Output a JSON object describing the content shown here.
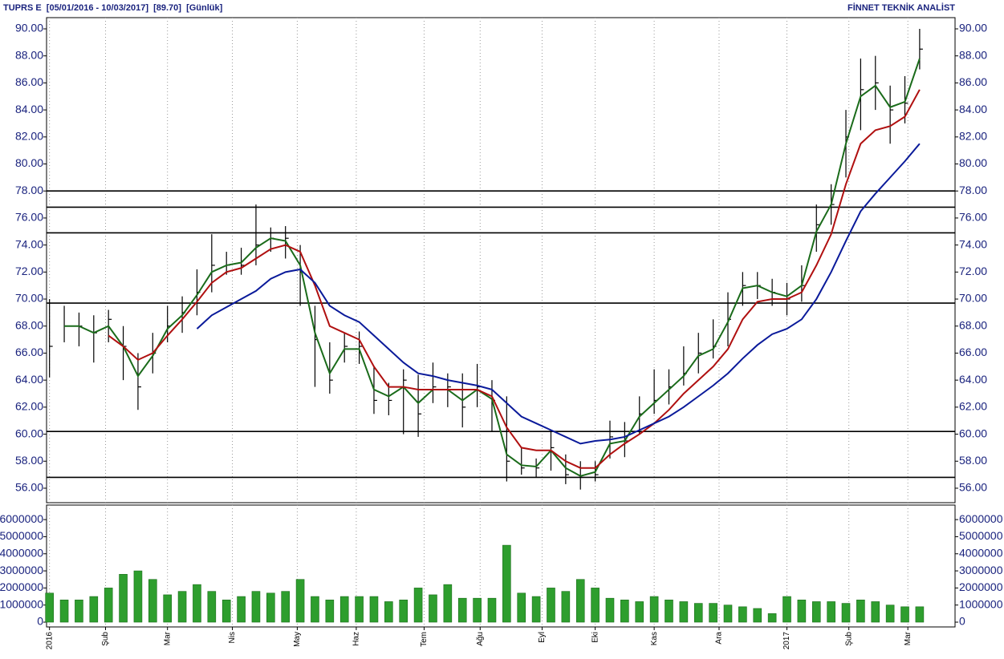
{
  "chart_data": [
    {
      "type": "ohlc",
      "title": "TUPRS E  [05/01/2016 - 10/03/2017]  [89.70]  [Günlük]",
      "subtitle": "FİNNET TEKNİK ANALİST",
      "x": [
        0,
        5,
        10,
        15,
        20,
        25,
        30,
        35,
        40,
        45,
        50,
        55,
        60,
        65,
        70,
        75,
        80,
        85,
        90,
        95,
        100,
        105,
        110,
        115,
        120,
        125,
        130,
        135,
        140,
        145,
        150,
        155,
        160,
        165,
        170,
        175,
        180,
        185,
        190,
        195,
        200,
        205,
        210,
        215,
        220,
        225,
        230,
        235,
        240,
        245,
        250,
        255,
        260,
        265,
        270,
        275,
        280,
        285,
        290,
        295
      ],
      "high": [
        70,
        69.5,
        69,
        68.8,
        69.2,
        68,
        66,
        67.5,
        69.5,
        70.2,
        72.2,
        74.8,
        73.5,
        73.8,
        77,
        75.3,
        75.4,
        74,
        69.5,
        66.8,
        67.5,
        67.6,
        65,
        63.8,
        64.8,
        64.4,
        65.3,
        64.5,
        64.5,
        65.2,
        64,
        62.8,
        59,
        58.2,
        60.3,
        58.5,
        58,
        58,
        61,
        60.9,
        62.8,
        64.8,
        64.8,
        66.5,
        67.5,
        68.5,
        70.5,
        72,
        72,
        71.5,
        71.2,
        72.5,
        77,
        78.5,
        84,
        87.8,
        88,
        85.8,
        86.5,
        90
      ],
      "low": [
        64.2,
        66.8,
        66.5,
        65.3,
        66.8,
        64,
        61.8,
        64.5,
        66.8,
        67.5,
        68.8,
        70.5,
        71.8,
        71.8,
        72.5,
        73.5,
        73,
        69.5,
        63.5,
        63,
        65.3,
        65.2,
        61.5,
        61.4,
        60,
        59.8,
        62.3,
        62,
        60.5,
        62,
        60.2,
        56.5,
        57,
        56.8,
        57.3,
        56.3,
        55.9,
        56.5,
        58.2,
        58.3,
        60,
        61.5,
        62.2,
        63.6,
        64.5,
        65.6,
        66.5,
        69.5,
        70,
        69.5,
        68.8,
        69.8,
        73.5,
        75.5,
        79,
        82.5,
        84,
        81.5,
        83,
        87
      ],
      "close": [
        66.5,
        68,
        68,
        67.5,
        68.5,
        66.5,
        63.5,
        66,
        68,
        69,
        70.5,
        72.5,
        72.5,
        72.5,
        74,
        74.5,
        74.5,
        72,
        67,
        64,
        66.5,
        66.5,
        62.5,
        62.5,
        64,
        61.5,
        63.5,
        63.5,
        62,
        63.5,
        62.5,
        58,
        57.5,
        57.5,
        59,
        57,
        56.8,
        57,
        59.8,
        59.5,
        61.5,
        62.5,
        63.5,
        64.5,
        66,
        66.5,
        68.5,
        71,
        71,
        70.5,
        70,
        71,
        75.5,
        77,
        82,
        85.5,
        86,
        84,
        84.5,
        88.5
      ],
      "bar_color": "#000000",
      "series": [
        {
          "color": "#1a6b1a",
          "values": [
            null,
            68,
            68,
            67.5,
            68,
            66.5,
            64.3,
            65.8,
            67.8,
            68.8,
            70.3,
            72,
            72.5,
            72.7,
            73.8,
            74.5,
            74.3,
            72.5,
            67.5,
            64.5,
            66.3,
            66.3,
            63.3,
            62.8,
            63.5,
            62.3,
            63.3,
            63.3,
            62.5,
            63.3,
            62.6,
            58.5,
            57.7,
            57.6,
            58.8,
            57.5,
            56.9,
            57.2,
            59.3,
            59.5,
            61.3,
            62.3,
            63.3,
            64.3,
            65.8,
            66.3,
            68.3,
            70.8,
            71,
            70.5,
            70.2,
            71,
            75,
            77,
            81.5,
            85,
            85.8,
            84.2,
            84.6,
            87.8
          ]
        },
        {
          "color": "#b01010",
          "values": [
            null,
            null,
            null,
            null,
            67.3,
            66.5,
            65.5,
            66,
            67.3,
            68.5,
            69.8,
            71.2,
            72,
            72.3,
            73,
            73.7,
            74,
            73.5,
            71,
            68,
            67.5,
            67,
            65,
            63.5,
            63.5,
            63.3,
            63.3,
            63.3,
            63.3,
            63.3,
            62.8,
            60.5,
            59,
            58.8,
            58.8,
            58,
            57.5,
            57.5,
            58.5,
            59.3,
            60,
            60.8,
            61.8,
            63,
            64,
            65,
            66.3,
            68.5,
            69.8,
            70,
            70,
            70.5,
            72.5,
            74.8,
            78.5,
            81.5,
            82.5,
            82.8,
            83.5,
            85.5
          ]
        },
        {
          "color": "#0a1a9a",
          "values": [
            null,
            null,
            null,
            null,
            null,
            null,
            null,
            null,
            null,
            null,
            67.8,
            68.8,
            69.4,
            70,
            70.6,
            71.5,
            72,
            72.2,
            71.2,
            69.5,
            68.8,
            68.3,
            67.3,
            66.3,
            65.3,
            64.5,
            64.3,
            64,
            63.8,
            63.6,
            63.3,
            62.3,
            61.3,
            60.8,
            60.3,
            59.8,
            59.3,
            59.5,
            59.6,
            59.8,
            60.3,
            60.8,
            61.3,
            62,
            62.8,
            63.6,
            64.5,
            65.6,
            66.6,
            67.4,
            67.8,
            68.5,
            70,
            72,
            74.3,
            76.5,
            77.8,
            79,
            80.2,
            81.5
          ]
        }
      ],
      "hlines": [
        78,
        76.8,
        74.9,
        69.7,
        60.2,
        56.8
      ],
      "xlim": [
        -1,
        307
      ],
      "ylim": [
        54.93,
        90.83
      ],
      "yticks": [
        {
          "value": 56,
          "label": "56.00"
        },
        {
          "value": 58,
          "label": "58.00"
        },
        {
          "value": 60,
          "label": "60.00"
        },
        {
          "value": 62,
          "label": "62.00"
        },
        {
          "value": 64,
          "label": "64.00"
        },
        {
          "value": 66,
          "label": "66.00"
        },
        {
          "value": 68,
          "label": "68.00"
        },
        {
          "value": 70,
          "label": "70.00"
        },
        {
          "value": 72,
          "label": "72.00"
        },
        {
          "value": 74,
          "label": "74.00"
        },
        {
          "value": 76,
          "label": "76.00"
        },
        {
          "value": 78,
          "label": "78.00"
        },
        {
          "value": 80,
          "label": "80.00"
        },
        {
          "value": 82,
          "label": "82.00"
        },
        {
          "value": 84,
          "label": "84.00"
        },
        {
          "value": 86,
          "label": "86.00"
        },
        {
          "value": 88,
          "label": "88.00"
        },
        {
          "value": 90,
          "label": "90.00"
        }
      ],
      "grid": true
    },
    {
      "type": "bar",
      "x": [
        0,
        5,
        10,
        15,
        20,
        25,
        30,
        35,
        40,
        45,
        50,
        55,
        60,
        65,
        70,
        75,
        80,
        85,
        90,
        95,
        100,
        105,
        110,
        115,
        120,
        125,
        130,
        135,
        140,
        145,
        150,
        155,
        160,
        165,
        170,
        175,
        180,
        185,
        190,
        195,
        200,
        205,
        210,
        215,
        220,
        225,
        230,
        235,
        240,
        245,
        250,
        255,
        260,
        265,
        270,
        275,
        280,
        285,
        290,
        295
      ],
      "values": [
        1700000,
        1300000,
        1300000,
        1500000,
        2000000,
        2800000,
        3000000,
        2500000,
        1600000,
        1800000,
        2200000,
        1800000,
        1300000,
        1500000,
        1800000,
        1700000,
        1800000,
        2500000,
        1500000,
        1300000,
        1500000,
        1500000,
        1500000,
        1200000,
        1300000,
        2000000,
        1600000,
        2200000,
        1400000,
        1400000,
        1400000,
        4500000,
        1700000,
        1500000,
        2000000,
        1800000,
        2500000,
        2000000,
        1400000,
        1300000,
        1200000,
        1500000,
        1300000,
        1200000,
        1100000,
        1100000,
        1000000,
        900000,
        800000,
        500000,
        1500000,
        1300000,
        1200000,
        1200000,
        1100000,
        1300000,
        1200000,
        1000000,
        900000,
        900000
      ],
      "color": "#2e9e2e",
      "xlim": [
        -1,
        307
      ],
      "ylim": [
        -280000,
        6850000
      ],
      "yticks": [
        0,
        1000000,
        2000000,
        3000000,
        4000000,
        5000000,
        6000000
      ],
      "xticks": [
        {
          "value": 0,
          "label": "2016"
        },
        {
          "value": 19,
          "label": "Şub"
        },
        {
          "value": 40,
          "label": "Mar"
        },
        {
          "value": 62,
          "label": "Nis"
        },
        {
          "value": 84,
          "label": "May"
        },
        {
          "value": 104,
          "label": "Haz"
        },
        {
          "value": 127,
          "label": "Tem"
        },
        {
          "value": 146,
          "label": "Ağu"
        },
        {
          "value": 167,
          "label": "Eyl"
        },
        {
          "value": 185,
          "label": "Eki"
        },
        {
          "value": 205,
          "label": "Kas"
        },
        {
          "value": 227,
          "label": "Ara"
        },
        {
          "value": 250,
          "label": "2017"
        },
        {
          "value": 271,
          "label": "Şub"
        },
        {
          "value": 291,
          "label": "Mar"
        }
      ],
      "grid": true
    }
  ]
}
